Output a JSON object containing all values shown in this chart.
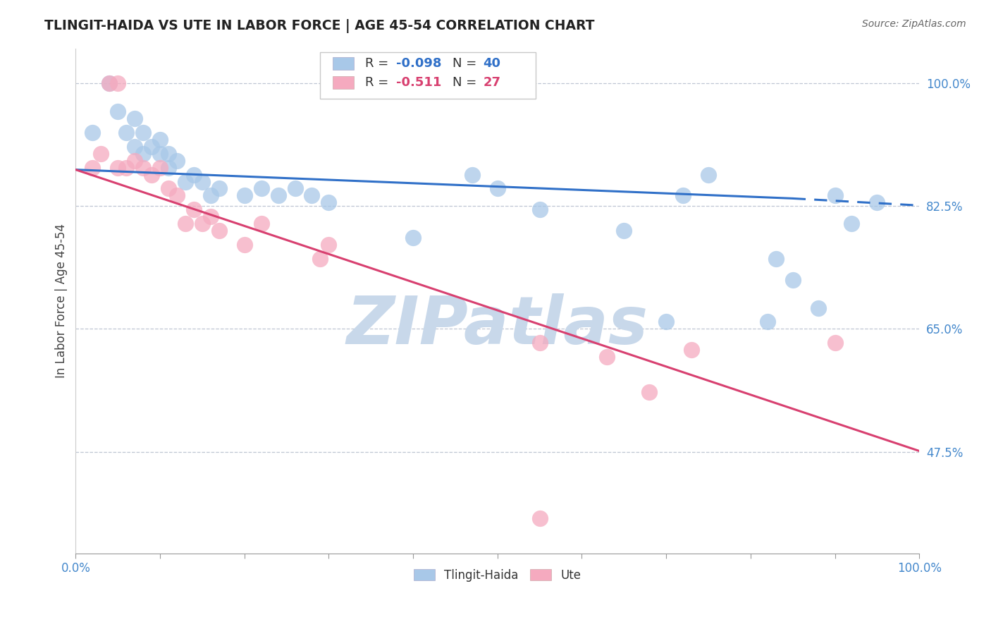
{
  "title": "TLINGIT-HAIDA VS UTE IN LABOR FORCE | AGE 45-54 CORRELATION CHART",
  "source": "Source: ZipAtlas.com",
  "ylabel": "In Labor Force | Age 45-54",
  "x_min": 0.0,
  "x_max": 1.0,
  "y_min": 0.33,
  "y_max": 1.05,
  "yticks": [
    0.475,
    0.65,
    0.825,
    1.0
  ],
  "ytick_labels": [
    "47.5%",
    "65.0%",
    "82.5%",
    "100.0%"
  ],
  "R_blue": -0.098,
  "N_blue": 40,
  "R_pink": -0.511,
  "N_pink": 27,
  "blue_color": "#a8c8e8",
  "pink_color": "#f5aabf",
  "blue_line_color": "#3070c8",
  "pink_line_color": "#d84070",
  "tick_color": "#4488cc",
  "blue_scatter_x": [
    0.02,
    0.04,
    0.05,
    0.06,
    0.07,
    0.07,
    0.08,
    0.08,
    0.09,
    0.1,
    0.1,
    0.11,
    0.11,
    0.12,
    0.13,
    0.14,
    0.15,
    0.16,
    0.17,
    0.2,
    0.22,
    0.24,
    0.26,
    0.28,
    0.3,
    0.4,
    0.47,
    0.5,
    0.55,
    0.65,
    0.7,
    0.72,
    0.75,
    0.82,
    0.83,
    0.85,
    0.88,
    0.9,
    0.92,
    0.95
  ],
  "blue_scatter_y": [
    0.93,
    1.0,
    0.96,
    0.93,
    0.91,
    0.95,
    0.9,
    0.93,
    0.91,
    0.9,
    0.92,
    0.9,
    0.88,
    0.89,
    0.86,
    0.87,
    0.86,
    0.84,
    0.85,
    0.84,
    0.85,
    0.84,
    0.85,
    0.84,
    0.83,
    0.78,
    0.87,
    0.85,
    0.82,
    0.79,
    0.66,
    0.84,
    0.87,
    0.66,
    0.75,
    0.72,
    0.68,
    0.84,
    0.8,
    0.83
  ],
  "pink_scatter_x": [
    0.02,
    0.03,
    0.04,
    0.05,
    0.05,
    0.06,
    0.07,
    0.08,
    0.09,
    0.1,
    0.11,
    0.12,
    0.13,
    0.14,
    0.15,
    0.16,
    0.17,
    0.2,
    0.22,
    0.29,
    0.3,
    0.55,
    0.63,
    0.68,
    0.73,
    0.9,
    0.55
  ],
  "pink_scatter_y": [
    0.88,
    0.9,
    1.0,
    1.0,
    0.88,
    0.88,
    0.89,
    0.88,
    0.87,
    0.88,
    0.85,
    0.84,
    0.8,
    0.82,
    0.8,
    0.81,
    0.79,
    0.77,
    0.8,
    0.75,
    0.77,
    0.63,
    0.61,
    0.56,
    0.62,
    0.63,
    0.38
  ],
  "blue_trend_x0": 0.0,
  "blue_trend_y0": 0.877,
  "blue_trend_x1": 0.85,
  "blue_trend_y1": 0.836,
  "blue_trend_dash_x0": 0.85,
  "blue_trend_dash_y0": 0.836,
  "blue_trend_dash_x1": 1.0,
  "blue_trend_dash_y1": 0.826,
  "pink_trend_x0": 0.0,
  "pink_trend_y0": 0.877,
  "pink_trend_x1": 1.0,
  "pink_trend_y1": 0.476
}
